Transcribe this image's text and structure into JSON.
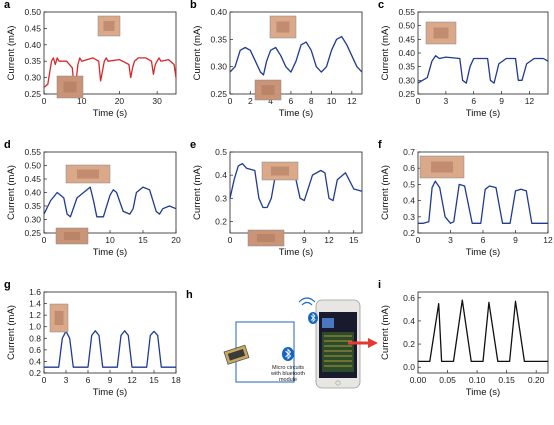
{
  "colors": {
    "red": "#d62728",
    "blue": "#1f3a93",
    "black": "#111111"
  },
  "chart_data": [
    {
      "type": "line",
      "panel_label": "a",
      "color": "red",
      "photos": 2,
      "xlabel": "Time (s)",
      "ylabel": "Current (mA)",
      "xlim": [
        0,
        35
      ],
      "ylim": [
        0.25,
        0.5
      ],
      "xticks": [
        0,
        10,
        20,
        30
      ],
      "yticks": [
        0.25,
        0.3,
        0.35,
        0.4,
        0.45,
        0.5
      ],
      "yfmt": 2,
      "series": [
        {
          "x": [
            0,
            1,
            2,
            2.5,
            3,
            3.5,
            4,
            6,
            7.5,
            8,
            8.5,
            9,
            9.5,
            10,
            13,
            14.5,
            15,
            15.5,
            16,
            16.5,
            17,
            20,
            22.5,
            23,
            23.5,
            24,
            25,
            27,
            28.5,
            29,
            29.5,
            30,
            30.5,
            31,
            33,
            34.5,
            35
          ],
          "y": [
            0.27,
            0.28,
            0.35,
            0.36,
            0.34,
            0.36,
            0.35,
            0.35,
            0.33,
            0.27,
            0.29,
            0.34,
            0.36,
            0.35,
            0.36,
            0.35,
            0.29,
            0.32,
            0.35,
            0.36,
            0.35,
            0.355,
            0.34,
            0.3,
            0.33,
            0.35,
            0.36,
            0.36,
            0.35,
            0.31,
            0.34,
            0.35,
            0.36,
            0.35,
            0.355,
            0.34,
            0.3
          ]
        }
      ]
    },
    {
      "type": "line",
      "panel_label": "b",
      "color": "blue",
      "photos": 2,
      "xlabel": "Time (s)",
      "ylabel": "Current (mA)",
      "xlim": [
        0,
        13
      ],
      "ylim": [
        0.25,
        0.4
      ],
      "xticks": [
        0,
        2,
        4,
        6,
        8,
        10,
        12
      ],
      "yticks": [
        0.25,
        0.3,
        0.35,
        0.4
      ],
      "yfmt": 2,
      "series": [
        {
          "x": [
            0,
            0.5,
            1,
            1.5,
            2,
            2.5,
            3,
            3.3,
            3.6,
            4,
            4.5,
            5,
            5.5,
            6,
            6.5,
            7,
            7.5,
            8,
            8.5,
            9,
            9.5,
            10,
            10.5,
            11,
            11.5,
            12,
            12.5,
            13
          ],
          "y": [
            0.29,
            0.3,
            0.33,
            0.335,
            0.33,
            0.31,
            0.29,
            0.285,
            0.31,
            0.33,
            0.335,
            0.32,
            0.3,
            0.29,
            0.31,
            0.34,
            0.345,
            0.33,
            0.3,
            0.29,
            0.3,
            0.33,
            0.35,
            0.355,
            0.34,
            0.32,
            0.3,
            0.29
          ]
        }
      ]
    },
    {
      "type": "line",
      "panel_label": "c",
      "color": "blue",
      "photos": 1,
      "xlabel": "Time (s)",
      "ylabel": "Current (mA)",
      "xlim": [
        0,
        14
      ],
      "ylim": [
        0.25,
        0.55
      ],
      "xticks": [
        0,
        3,
        6,
        9,
        12
      ],
      "yticks": [
        0.25,
        0.3,
        0.35,
        0.4,
        0.45,
        0.5,
        0.55
      ],
      "yfmt": 2,
      "series": [
        {
          "x": [
            0,
            0.5,
            1,
            1.5,
            1.9,
            2.3,
            3,
            4.5,
            4.8,
            5.2,
            5.6,
            6,
            7.5,
            7.8,
            8.2,
            8.7,
            9.5,
            10.5,
            10.8,
            11.2,
            11.7,
            12.5,
            13.5,
            14
          ],
          "y": [
            0.29,
            0.3,
            0.31,
            0.37,
            0.39,
            0.38,
            0.385,
            0.38,
            0.3,
            0.29,
            0.35,
            0.38,
            0.38,
            0.3,
            0.29,
            0.36,
            0.38,
            0.38,
            0.3,
            0.3,
            0.36,
            0.38,
            0.38,
            0.37
          ]
        }
      ]
    },
    {
      "type": "line",
      "panel_label": "d",
      "color": "blue",
      "photos": 2,
      "xlabel": "Time (s)",
      "ylabel": "Current (mA)",
      "xlim": [
        0,
        20
      ],
      "ylim": [
        0.25,
        0.55
      ],
      "xticks": [
        0,
        5,
        10,
        15,
        20
      ],
      "yticks": [
        0.25,
        0.3,
        0.35,
        0.4,
        0.45,
        0.5,
        0.55
      ],
      "yfmt": 2,
      "series": [
        {
          "x": [
            0,
            1,
            2,
            3,
            3.5,
            4,
            5,
            6,
            7,
            7.5,
            8,
            9,
            10,
            10.5,
            11,
            12,
            13,
            13.5,
            14,
            15,
            16,
            17,
            17.5,
            18,
            19,
            20
          ],
          "y": [
            0.32,
            0.37,
            0.4,
            0.38,
            0.32,
            0.31,
            0.38,
            0.4,
            0.42,
            0.37,
            0.31,
            0.31,
            0.39,
            0.41,
            0.4,
            0.33,
            0.32,
            0.34,
            0.4,
            0.42,
            0.41,
            0.33,
            0.32,
            0.34,
            0.35,
            0.34
          ]
        }
      ]
    },
    {
      "type": "line",
      "panel_label": "e",
      "color": "blue",
      "photos": 2,
      "xlabel": "Time (s)",
      "ylabel": "Current (mA)",
      "xlim": [
        0,
        16
      ],
      "ylim": [
        0.15,
        0.5
      ],
      "xticks": [
        0,
        3,
        6,
        9,
        12,
        15
      ],
      "yticks": [
        0.2,
        0.3,
        0.4,
        0.5
      ],
      "yfmt": 1,
      "series": [
        {
          "x": [
            0,
            0.5,
            1,
            1.5,
            2,
            3,
            3.5,
            4,
            4.5,
            5,
            5.5,
            6,
            6.5,
            7,
            8,
            8.5,
            9,
            10,
            11,
            11.5,
            12,
            12.5,
            13,
            14,
            15,
            16
          ],
          "y": [
            0.3,
            0.38,
            0.44,
            0.45,
            0.43,
            0.42,
            0.3,
            0.26,
            0.26,
            0.3,
            0.4,
            0.43,
            0.42,
            0.41,
            0.38,
            0.3,
            0.29,
            0.4,
            0.42,
            0.41,
            0.3,
            0.29,
            0.38,
            0.41,
            0.34,
            0.33
          ]
        }
      ]
    },
    {
      "type": "line",
      "panel_label": "f",
      "color": "blue",
      "photos": 1,
      "xlabel": "Time (s)",
      "ylabel": "Current (mA)",
      "xlim": [
        0,
        12
      ],
      "ylim": [
        0.2,
        0.7
      ],
      "xticks": [
        0,
        3,
        6,
        9,
        12
      ],
      "yticks": [
        0.2,
        0.3,
        0.4,
        0.5,
        0.6,
        0.7
      ],
      "yfmt": 1,
      "series": [
        {
          "x": [
            0,
            0.5,
            1,
            1.3,
            1.6,
            2,
            2.5,
            3,
            3.3,
            3.8,
            4.3,
            5,
            5.8,
            6.2,
            6.6,
            7.2,
            7.8,
            8.5,
            9,
            9.5,
            10,
            10.5,
            11.5,
            12
          ],
          "y": [
            0.26,
            0.26,
            0.27,
            0.48,
            0.52,
            0.48,
            0.3,
            0.26,
            0.27,
            0.5,
            0.49,
            0.26,
            0.26,
            0.47,
            0.49,
            0.48,
            0.26,
            0.26,
            0.46,
            0.47,
            0.46,
            0.26,
            0.26,
            0.26
          ]
        }
      ]
    },
    {
      "type": "line",
      "panel_label": "g",
      "color": "blue",
      "photos": 1,
      "xlabel": "Time (s)",
      "ylabel": "Current (mA)",
      "xlim": [
        0,
        18
      ],
      "ylim": [
        0.2,
        1.6
      ],
      "xticks": [
        0,
        3,
        6,
        9,
        12,
        15,
        18
      ],
      "yticks": [
        0.2,
        0.4,
        0.6,
        0.8,
        1.0,
        1.2,
        1.4,
        1.6
      ],
      "yfmt": 1,
      "series": [
        {
          "x": [
            0,
            1,
            2,
            2.5,
            3,
            3.5,
            4,
            5,
            6,
            6.5,
            7,
            7.5,
            8,
            9,
            10,
            10.5,
            11,
            11.5,
            12,
            13,
            14,
            14.5,
            15,
            15.5,
            16,
            17,
            18
          ],
          "y": [
            0.3,
            0.3,
            0.3,
            0.8,
            0.92,
            0.8,
            0.3,
            0.3,
            0.3,
            0.85,
            0.93,
            0.85,
            0.3,
            0.3,
            0.3,
            0.85,
            0.93,
            0.85,
            0.3,
            0.3,
            0.3,
            0.85,
            0.92,
            0.85,
            0.3,
            0.3,
            0.3
          ]
        }
      ]
    },
    {
      "type": "line",
      "panel_label": "i",
      "color": "black",
      "photos": 0,
      "xlabel": "Time (s)",
      "ylabel": "Current (mA)",
      "xlim": [
        0,
        0.22
      ],
      "ylim": [
        -0.05,
        0.65
      ],
      "xticks": [
        0.0,
        0.05,
        0.1,
        0.15,
        0.2
      ],
      "yticks": [
        0.0,
        0.2,
        0.4,
        0.6
      ],
      "yfmt": 1,
      "xfmt": 2,
      "series": [
        {
          "x": [
            0,
            0.01,
            0.02,
            0.035,
            0.04,
            0.045,
            0.06,
            0.075,
            0.09,
            0.095,
            0.11,
            0.12,
            0.135,
            0.14,
            0.155,
            0.165,
            0.18,
            0.19,
            0.2,
            0.21,
            0.22
          ],
          "y": [
            0.05,
            0.05,
            0.05,
            0.55,
            0.05,
            0.05,
            0.05,
            0.58,
            0.05,
            0.05,
            0.05,
            0.56,
            0.05,
            0.05,
            0.05,
            0.57,
            0.05,
            0.05,
            0.05,
            0.05,
            0.05
          ]
        }
      ]
    }
  ],
  "panel_h": {
    "label": "h",
    "module_text": [
      "Micro circuits",
      "with bluetooth",
      "module"
    ]
  }
}
